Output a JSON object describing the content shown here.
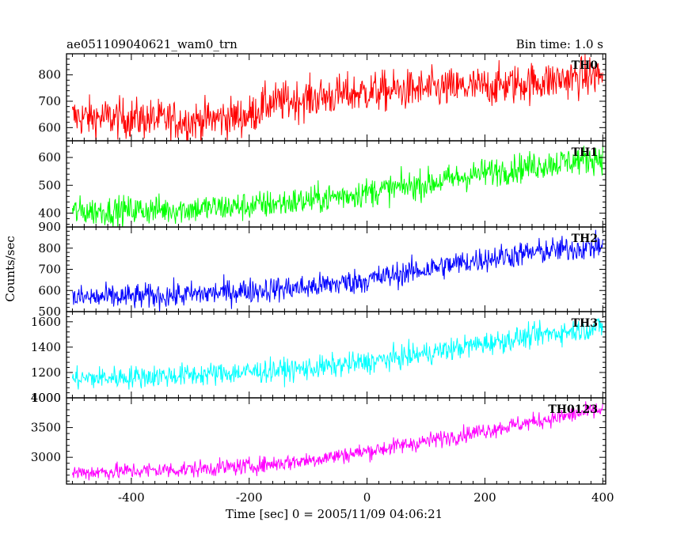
{
  "header": {
    "left_title": "ae051109040621_wam0_trn",
    "right_title": "Bin time: 1.0 s"
  },
  "axes": {
    "ylabel": "Counts/sec",
    "xlabel": "Time [sec] 0 = 2005/11/09 04:06:21",
    "x_range": [
      -510,
      405
    ],
    "x_ticks": [
      -400,
      -200,
      0,
      200,
      400
    ]
  },
  "chart_data": [
    {
      "type": "line",
      "name": "TH0",
      "color": "#ff0000",
      "ylim": [
        550,
        880
      ],
      "y_ticks": [
        600,
        700,
        800
      ],
      "noise": 38,
      "x": [
        -500,
        -400,
        -300,
        -200,
        -170,
        -100,
        0,
        100,
        200,
        300,
        400
      ],
      "values": [
        640,
        635,
        625,
        645,
        690,
        710,
        735,
        745,
        755,
        775,
        800
      ]
    },
    {
      "type": "line",
      "name": "TH1",
      "color": "#00ff00",
      "ylim": [
        350,
        660
      ],
      "y_ticks": [
        400,
        500,
        600
      ],
      "noise": 26,
      "x": [
        -500,
        -400,
        -300,
        -200,
        -100,
        0,
        100,
        200,
        300,
        400
      ],
      "values": [
        405,
        410,
        415,
        425,
        445,
        475,
        505,
        545,
        575,
        600
      ]
    },
    {
      "type": "line",
      "name": "TH2",
      "color": "#0000ff",
      "ylim": [
        500,
        900
      ],
      "y_ticks": [
        500,
        600,
        700,
        800,
        900
      ],
      "noise": 30,
      "x": [
        -500,
        -400,
        -300,
        -200,
        -100,
        0,
        100,
        200,
        300,
        400
      ],
      "values": [
        565,
        570,
        580,
        600,
        615,
        650,
        700,
        750,
        785,
        810
      ]
    },
    {
      "type": "line",
      "name": "TH3",
      "color": "#00ffff",
      "ylim": [
        1000,
        1680
      ],
      "y_ticks": [
        1000,
        1200,
        1400,
        1600
      ],
      "noise": 45,
      "x": [
        -500,
        -400,
        -300,
        -200,
        -100,
        0,
        100,
        200,
        300,
        400
      ],
      "values": [
        1150,
        1165,
        1180,
        1205,
        1230,
        1280,
        1350,
        1430,
        1500,
        1560
      ]
    },
    {
      "type": "line",
      "name": "TH0123",
      "color": "#ff00ff",
      "ylim": [
        2550,
        4000
      ],
      "y_ticks": [
        3000,
        3500,
        4000
      ],
      "noise": 70,
      "x": [
        -500,
        -400,
        -300,
        -200,
        -100,
        0,
        100,
        200,
        300,
        400
      ],
      "values": [
        2740,
        2770,
        2800,
        2850,
        2950,
        3100,
        3270,
        3450,
        3630,
        3800
      ]
    }
  ]
}
